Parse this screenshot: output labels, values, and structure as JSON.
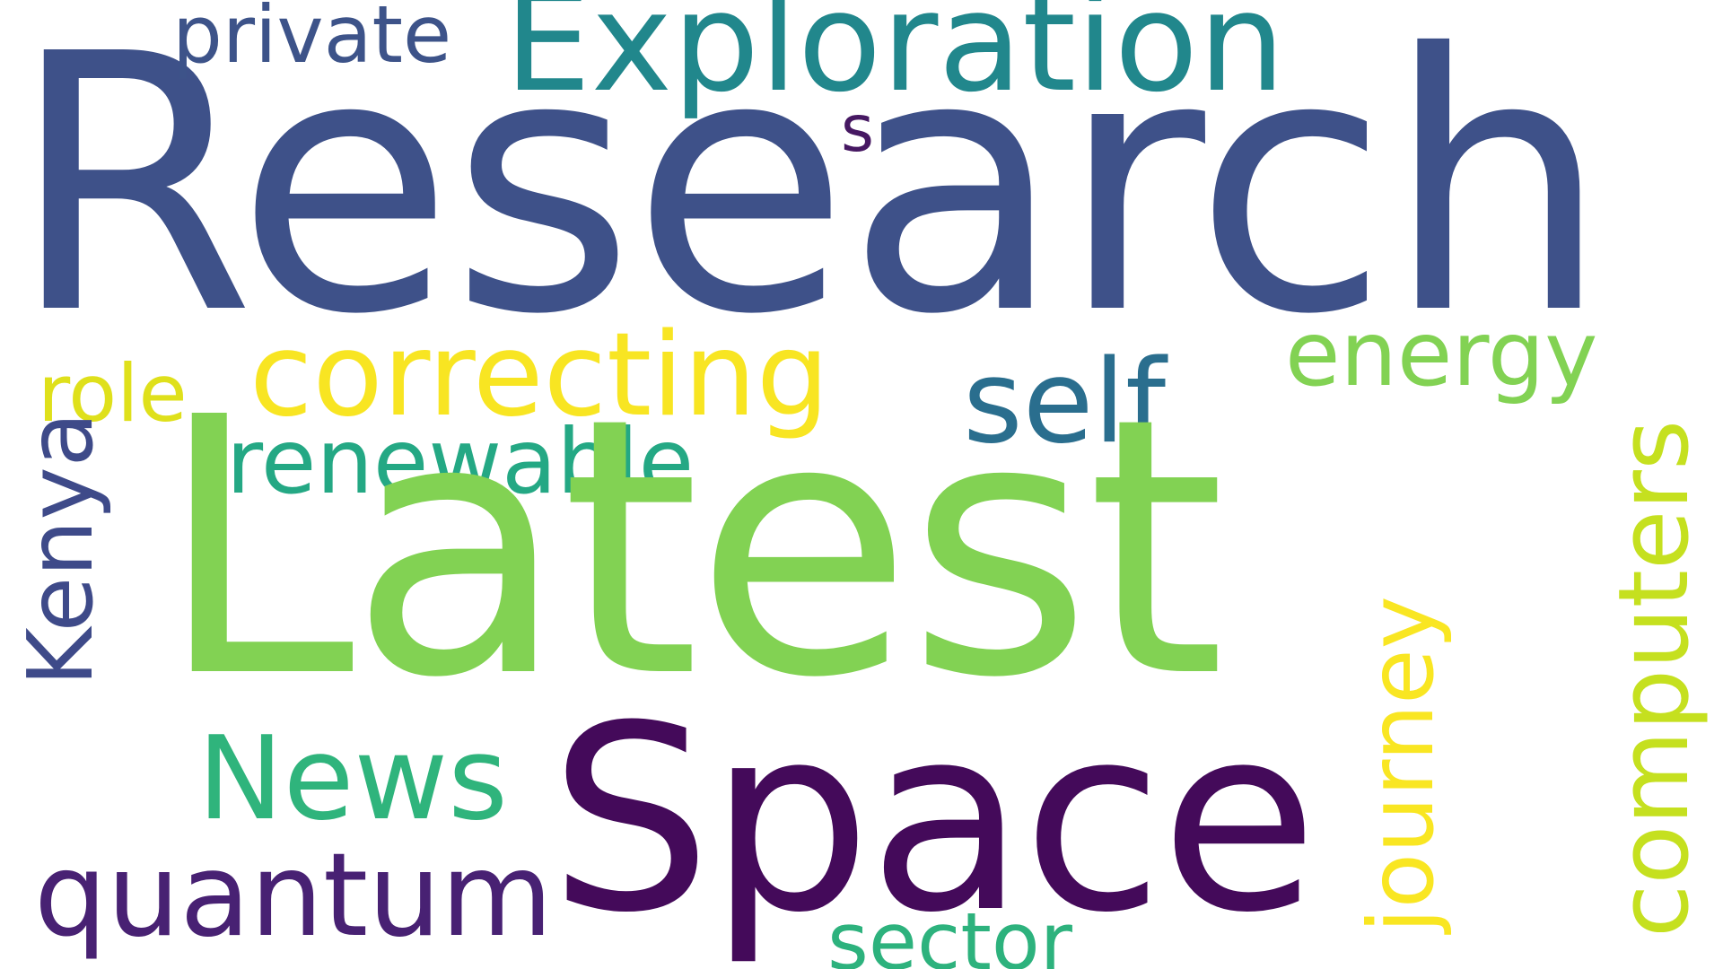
{
  "background_color": "#ffffff",
  "words": {
    "research": {
      "text": "Research",
      "color": "#3e5189"
    },
    "latest": {
      "text": "Latest",
      "color": "#82d253"
    },
    "space": {
      "text": "Space",
      "color": "#440a5a"
    },
    "exploration": {
      "text": "Exploration",
      "color": "#21878c"
    },
    "correcting": {
      "text": "correcting",
      "color": "#f8e522"
    },
    "self": {
      "text": "self",
      "color": "#2a6e8e"
    },
    "energy": {
      "text": "energy",
      "color": "#82d253"
    },
    "computers": {
      "text": "computers",
      "color": "#c5e01f"
    },
    "private": {
      "text": "private",
      "color": "#3d5389"
    },
    "role": {
      "text": "role",
      "color": "#dfe01b"
    },
    "kenya": {
      "text": "Kenya",
      "color": "#3e4a89"
    },
    "renewable": {
      "text": "renewable",
      "color": "#24a884"
    },
    "journey": {
      "text": "journey",
      "color": "#f9e622"
    },
    "news": {
      "text": "News",
      "color": "#2fb47c"
    },
    "quantum": {
      "text": "quantum",
      "color": "#482173"
    },
    "sector": {
      "text": "sector",
      "color": "#2db27d"
    },
    "s": {
      "text": "s",
      "color": "#461862"
    }
  }
}
